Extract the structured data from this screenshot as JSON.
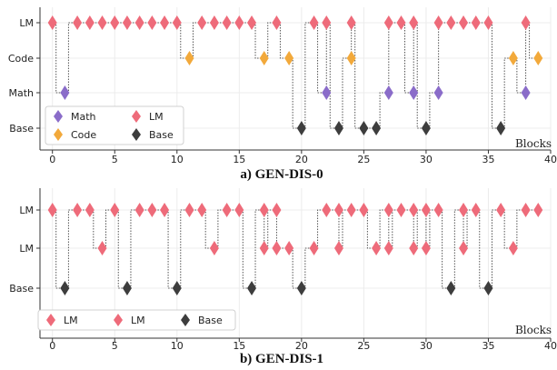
{
  "colors": {
    "LM": "#ee6b7a",
    "Code": "#f2a93b",
    "Math": "#8a6cc9",
    "Base": "#3d3d3d"
  },
  "chart_data": [
    {
      "type": "scatter",
      "caption": "a) GEN-DIS-0",
      "xlabel": "Blocks",
      "xlim": [
        -1,
        40
      ],
      "xticks": [
        0,
        5,
        10,
        15,
        20,
        25,
        30,
        35,
        40
      ],
      "rows": [
        "LM",
        "Code",
        "Math",
        "Base"
      ],
      "connectors": true,
      "legend": {
        "position": "lower-left",
        "columns": 2,
        "entries": [
          {
            "label": "Math",
            "category": "Math"
          },
          {
            "label": "LM",
            "category": "LM"
          },
          {
            "label": "Code",
            "category": "Code"
          },
          {
            "label": "Base",
            "category": "Base"
          }
        ]
      },
      "points": [
        {
          "x": 0,
          "row": 0,
          "category": "LM"
        },
        {
          "x": 1,
          "row": 2,
          "category": "Math"
        },
        {
          "x": 2,
          "row": 0,
          "category": "LM"
        },
        {
          "x": 3,
          "row": 0,
          "category": "LM"
        },
        {
          "x": 4,
          "row": 0,
          "category": "LM"
        },
        {
          "x": 5,
          "row": 0,
          "category": "LM"
        },
        {
          "x": 6,
          "row": 0,
          "category": "LM"
        },
        {
          "x": 7,
          "row": 0,
          "category": "LM"
        },
        {
          "x": 8,
          "row": 0,
          "category": "LM"
        },
        {
          "x": 9,
          "row": 0,
          "category": "LM"
        },
        {
          "x": 10,
          "row": 0,
          "category": "LM"
        },
        {
          "x": 11,
          "row": 1,
          "category": "Code"
        },
        {
          "x": 12,
          "row": 0,
          "category": "LM"
        },
        {
          "x": 13,
          "row": 0,
          "category": "LM"
        },
        {
          "x": 14,
          "row": 0,
          "category": "LM"
        },
        {
          "x": 15,
          "row": 0,
          "category": "LM"
        },
        {
          "x": 16,
          "row": 0,
          "category": "LM"
        },
        {
          "x": 17,
          "row": 1,
          "category": "Code"
        },
        {
          "x": 18,
          "row": 0,
          "category": "LM"
        },
        {
          "x": 19,
          "row": 1,
          "category": "Code"
        },
        {
          "x": 20,
          "row": 3,
          "category": "Base"
        },
        {
          "x": 21,
          "row": 0,
          "category": "LM"
        },
        {
          "x": 22,
          "row": 2,
          "category": "Math"
        },
        {
          "x": 22,
          "row": 0,
          "category": "LM"
        },
        {
          "x": 23,
          "row": 3,
          "category": "Base"
        },
        {
          "x": 24,
          "row": 1,
          "category": "Code"
        },
        {
          "x": 24,
          "row": 0,
          "category": "LM"
        },
        {
          "x": 25,
          "row": 3,
          "category": "Base"
        },
        {
          "x": 26,
          "row": 3,
          "category": "Base"
        },
        {
          "x": 27,
          "row": 2,
          "category": "Math"
        },
        {
          "x": 27,
          "row": 0,
          "category": "LM"
        },
        {
          "x": 28,
          "row": 0,
          "category": "LM"
        },
        {
          "x": 29,
          "row": 2,
          "category": "Math"
        },
        {
          "x": 29,
          "row": 0,
          "category": "LM"
        },
        {
          "x": 30,
          "row": 3,
          "category": "Base"
        },
        {
          "x": 31,
          "row": 2,
          "category": "Math"
        },
        {
          "x": 31,
          "row": 0,
          "category": "LM"
        },
        {
          "x": 32,
          "row": 0,
          "category": "LM"
        },
        {
          "x": 33,
          "row": 0,
          "category": "LM"
        },
        {
          "x": 34,
          "row": 0,
          "category": "LM"
        },
        {
          "x": 35,
          "row": 0,
          "category": "LM"
        },
        {
          "x": 36,
          "row": 3,
          "category": "Base"
        },
        {
          "x": 37,
          "row": 1,
          "category": "Code"
        },
        {
          "x": 38,
          "row": 2,
          "category": "Math"
        },
        {
          "x": 38,
          "row": 0,
          "category": "LM"
        },
        {
          "x": 39,
          "row": 1,
          "category": "Code"
        }
      ]
    },
    {
      "type": "scatter",
      "caption": "b) GEN-DIS-1",
      "xlabel": "Blocks",
      "xlim": [
        -1,
        40
      ],
      "xticks": [
        0,
        5,
        10,
        15,
        20,
        25,
        30,
        35,
        40
      ],
      "rows": [
        "LM",
        "LM",
        "Base"
      ],
      "connectors": true,
      "legend": {
        "position": "lower-left",
        "columns": 3,
        "entries": [
          {
            "label": "LM",
            "category": "LM"
          },
          {
            "label": "LM",
            "category": "LM"
          },
          {
            "label": "Base",
            "category": "Base"
          }
        ]
      },
      "points": [
        {
          "x": 0,
          "row": 0,
          "category": "LM"
        },
        {
          "x": 1,
          "row": 2,
          "category": "Base"
        },
        {
          "x": 2,
          "row": 0,
          "category": "LM"
        },
        {
          "x": 3,
          "row": 0,
          "category": "LM"
        },
        {
          "x": 4,
          "row": 1,
          "category": "LM"
        },
        {
          "x": 5,
          "row": 0,
          "category": "LM"
        },
        {
          "x": 6,
          "row": 2,
          "category": "Base"
        },
        {
          "x": 7,
          "row": 0,
          "category": "LM"
        },
        {
          "x": 8,
          "row": 0,
          "category": "LM"
        },
        {
          "x": 9,
          "row": 0,
          "category": "LM"
        },
        {
          "x": 10,
          "row": 2,
          "category": "Base"
        },
        {
          "x": 11,
          "row": 0,
          "category": "LM"
        },
        {
          "x": 12,
          "row": 0,
          "category": "LM"
        },
        {
          "x": 13,
          "row": 1,
          "category": "LM"
        },
        {
          "x": 14,
          "row": 0,
          "category": "LM"
        },
        {
          "x": 15,
          "row": 0,
          "category": "LM"
        },
        {
          "x": 16,
          "row": 2,
          "category": "Base"
        },
        {
          "x": 17,
          "row": 0,
          "category": "LM"
        },
        {
          "x": 17,
          "row": 1,
          "category": "LM"
        },
        {
          "x": 18,
          "row": 0,
          "category": "LM"
        },
        {
          "x": 18,
          "row": 1,
          "category": "LM"
        },
        {
          "x": 19,
          "row": 1,
          "category": "LM"
        },
        {
          "x": 20,
          "row": 2,
          "category": "Base"
        },
        {
          "x": 21,
          "row": 1,
          "category": "LM"
        },
        {
          "x": 22,
          "row": 0,
          "category": "LM"
        },
        {
          "x": 23,
          "row": 0,
          "category": "LM"
        },
        {
          "x": 23,
          "row": 1,
          "category": "LM"
        },
        {
          "x": 24,
          "row": 0,
          "category": "LM"
        },
        {
          "x": 25,
          "row": 0,
          "category": "LM"
        },
        {
          "x": 26,
          "row": 1,
          "category": "LM"
        },
        {
          "x": 27,
          "row": 0,
          "category": "LM"
        },
        {
          "x": 27,
          "row": 1,
          "category": "LM"
        },
        {
          "x": 28,
          "row": 0,
          "category": "LM"
        },
        {
          "x": 29,
          "row": 0,
          "category": "LM"
        },
        {
          "x": 29,
          "row": 1,
          "category": "LM"
        },
        {
          "x": 30,
          "row": 0,
          "category": "LM"
        },
        {
          "x": 30,
          "row": 1,
          "category": "LM"
        },
        {
          "x": 31,
          "row": 0,
          "category": "LM"
        },
        {
          "x": 32,
          "row": 2,
          "category": "Base"
        },
        {
          "x": 33,
          "row": 0,
          "category": "LM"
        },
        {
          "x": 33,
          "row": 1,
          "category": "LM"
        },
        {
          "x": 34,
          "row": 0,
          "category": "LM"
        },
        {
          "x": 35,
          "row": 2,
          "category": "Base"
        },
        {
          "x": 36,
          "row": 0,
          "category": "LM"
        },
        {
          "x": 37,
          "row": 1,
          "category": "LM"
        },
        {
          "x": 38,
          "row": 0,
          "category": "LM"
        },
        {
          "x": 39,
          "row": 0,
          "category": "LM"
        }
      ]
    }
  ]
}
